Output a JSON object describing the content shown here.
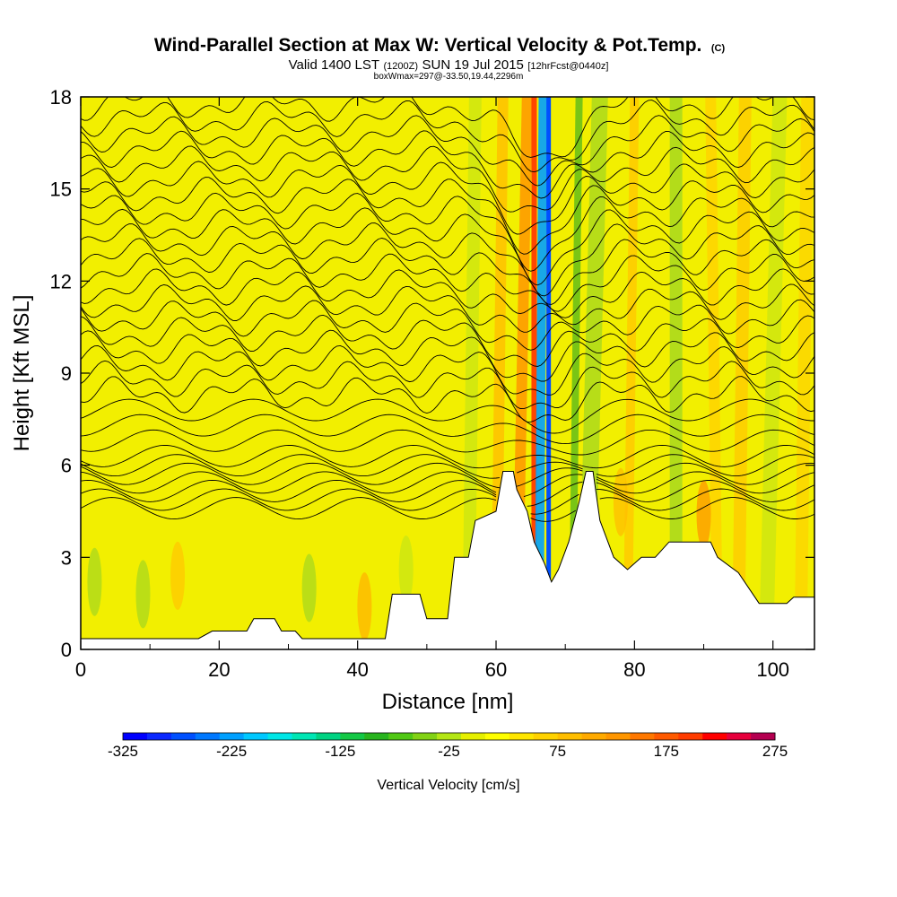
{
  "chart_data": {
    "type": "heatmap",
    "title": {
      "main": "Wind-Parallel Section at Max W: Vertical Velocity & Pot.Temp.",
      "mark": "(C)"
    },
    "subtitle": {
      "pre": "Valid 1400 LST",
      "zulu": "(1200Z)",
      "date": "SUN 19 Jul 2015",
      "fcst": "[12hrFcst@0440z]"
    },
    "info_line": "boxWmax=297@-33.50,19.44,2296m",
    "xlabel": "Distance [nm]",
    "ylabel": "Height [Kft MSL]",
    "xlim": [
      0,
      106
    ],
    "ylim": [
      0,
      18
    ],
    "x_ticks": [
      "0",
      "20",
      "40",
      "60",
      "80",
      "100"
    ],
    "y_ticks": [
      "0",
      "3",
      "6",
      "9",
      "12",
      "15",
      "18"
    ],
    "colorbar": {
      "label": "Vertical Velocity [cm/s]",
      "min": -325,
      "max": 275,
      "step": 25,
      "tick_labels": [
        "-325",
        "-225",
        "-125",
        "-25",
        "75",
        "175",
        "275"
      ],
      "colors": [
        "#0000ff",
        "#0a28ff",
        "#0050ff",
        "#0078ff",
        "#00a0ff",
        "#00c8ff",
        "#00e6e6",
        "#00e6b4",
        "#00d282",
        "#14c846",
        "#28b41e",
        "#50c814",
        "#82d214",
        "#b4e614",
        "#e6f000",
        "#ffff00",
        "#ffe600",
        "#ffd200",
        "#ffbe00",
        "#ffaa00",
        "#ff9600",
        "#ff7800",
        "#ff5a00",
        "#ff3c00",
        "#ff0000",
        "#e6003c",
        "#b40050"
      ]
    },
    "terrain_kft": [
      [
        0,
        0.35
      ],
      [
        17,
        0.35
      ],
      [
        19,
        0.6
      ],
      [
        24,
        0.6
      ],
      [
        25,
        1.0
      ],
      [
        28,
        1.0
      ],
      [
        29,
        0.6
      ],
      [
        31,
        0.6
      ],
      [
        32,
        0.35
      ],
      [
        44,
        0.35
      ],
      [
        45,
        1.8
      ],
      [
        49,
        1.8
      ],
      [
        50,
        1.0
      ],
      [
        53,
        1.0
      ],
      [
        54,
        3.0
      ],
      [
        56,
        3.0
      ],
      [
        57,
        4.2
      ],
      [
        60,
        4.5
      ],
      [
        61,
        5.8
      ],
      [
        62.5,
        5.8
      ],
      [
        63,
        5.2
      ],
      [
        64.5,
        4.5
      ],
      [
        65.5,
        3.5
      ],
      [
        67,
        2.8
      ],
      [
        68,
        2.2
      ],
      [
        69,
        2.6
      ],
      [
        70.5,
        3.5
      ],
      [
        72,
        4.8
      ],
      [
        73,
        5.8
      ],
      [
        74,
        5.8
      ],
      [
        75,
        4.2
      ],
      [
        77,
        3.0
      ],
      [
        79,
        2.6
      ],
      [
        81,
        3.0
      ],
      [
        83,
        3.0
      ],
      [
        85,
        3.5
      ],
      [
        91,
        3.5
      ],
      [
        92,
        3.0
      ],
      [
        95,
        2.5
      ],
      [
        98,
        1.5
      ],
      [
        102,
        1.5
      ],
      [
        103,
        1.7
      ],
      [
        106,
        1.7
      ]
    ]
  }
}
